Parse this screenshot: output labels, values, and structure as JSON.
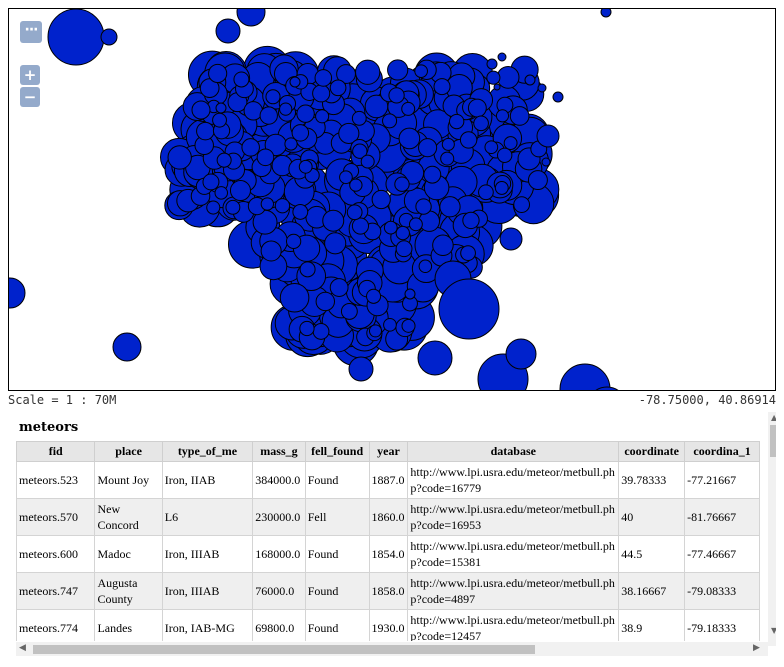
{
  "map": {
    "layer_switcher_label": "···",
    "zoom_in_label": "+",
    "zoom_out_label": "−",
    "point_fill": "#0022cc",
    "point_stroke": "#000000"
  },
  "status": {
    "scale_text": "Scale = 1 : 70M",
    "coords_text": "-78.75000, 40.86914"
  },
  "attribute_table": {
    "layer_name": "meteors",
    "columns": [
      "fid",
      "place",
      "type_of_me",
      "mass_g",
      "fell_found",
      "year",
      "database",
      "coordinate",
      "coordina_1"
    ],
    "rows": [
      [
        "meteors.523",
        "Mount Joy",
        "Iron, IIAB",
        "384000.0",
        "Found",
        "1887.0",
        "http://www.lpi.usra.edu/meteor/metbull.php?code=16779",
        "39.78333",
        "-77.21667"
      ],
      [
        "meteors.570",
        "New Concord",
        "L6",
        "230000.0",
        "Fell",
        "1860.0",
        "http://www.lpi.usra.edu/meteor/metbull.php?code=16953",
        "40",
        "-81.76667"
      ],
      [
        "meteors.600",
        "Madoc",
        "Iron, IIIAB",
        "168000.0",
        "Found",
        "1854.0",
        "http://www.lpi.usra.edu/meteor/metbull.php?code=15381",
        "44.5",
        "-77.46667"
      ],
      [
        "meteors.747",
        "Augusta County",
        "Iron, IIIAB",
        "76000.0",
        "Found",
        "1858.0",
        "http://www.lpi.usra.edu/meteor/metbull.php?code=4897",
        "38.16667",
        "-79.08333"
      ],
      [
        "meteors.774",
        "Landes",
        "Iron, IAB-MG",
        "69800.0",
        "Found",
        "1930.0",
        "http://www.lpi.usra.edu/meteor/metbull.php?code=12457",
        "38.9",
        "-79.18333"
      ]
    ]
  }
}
